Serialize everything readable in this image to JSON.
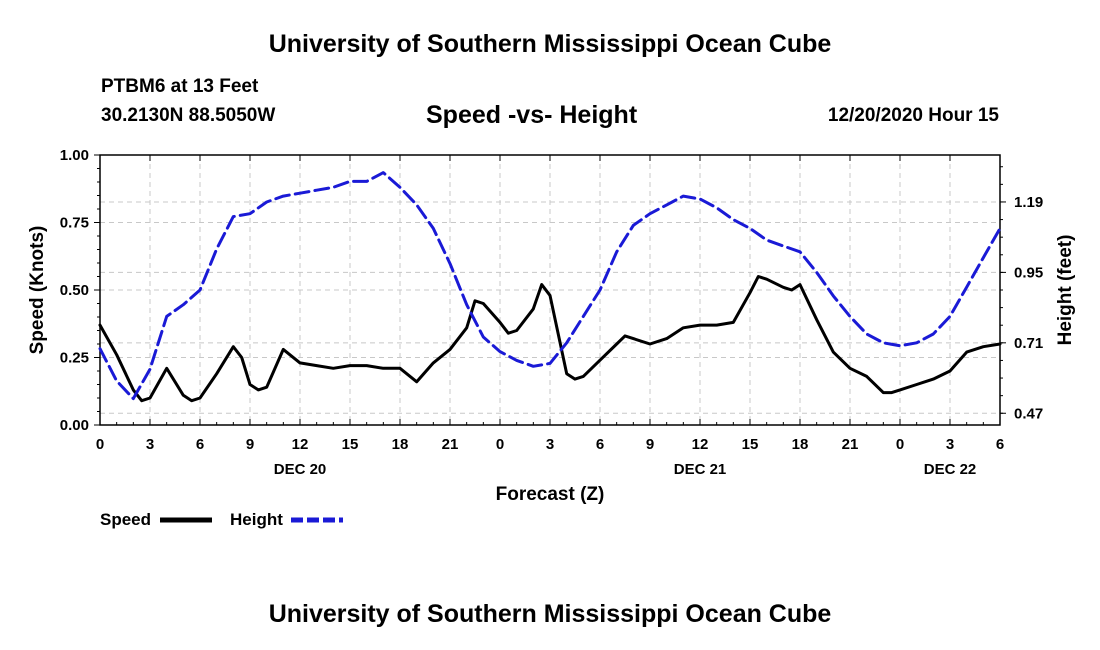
{
  "header": {
    "top_title": "University of Southern Mississippi Ocean Cube",
    "station": "PTBM6 at 13 Feet",
    "coords": "30.2130N 88.5050W",
    "chart_title": "Speed -vs- Height",
    "timestamp": "12/20/2020 Hour 15",
    "bottom_title": "University of Southern Mississippi Ocean Cube"
  },
  "colors": {
    "speed": "#000000",
    "height": "#1a1ad6",
    "grid": "#c8c8c8"
  },
  "chart_data": {
    "type": "line",
    "title": "Speed -vs- Height",
    "xlabel": "Forecast (Z)",
    "ylabel_left": "Speed (Knots)",
    "ylabel_right": "Height (feet)",
    "x_range": [
      0,
      54
    ],
    "ylim_left": [
      0,
      1.0
    ],
    "ylim_right": [
      0.43,
      1.35
    ],
    "x_ticks": [
      {
        "x": 0,
        "label": "0"
      },
      {
        "x": 3,
        "label": "3"
      },
      {
        "x": 6,
        "label": "6"
      },
      {
        "x": 9,
        "label": "9"
      },
      {
        "x": 12,
        "label": "12"
      },
      {
        "x": 15,
        "label": "15"
      },
      {
        "x": 18,
        "label": "18"
      },
      {
        "x": 21,
        "label": "21"
      },
      {
        "x": 24,
        "label": "0"
      },
      {
        "x": 27,
        "label": "3"
      },
      {
        "x": 30,
        "label": "6"
      },
      {
        "x": 33,
        "label": "9"
      },
      {
        "x": 36,
        "label": "12"
      },
      {
        "x": 39,
        "label": "15"
      },
      {
        "x": 42,
        "label": "18"
      },
      {
        "x": 45,
        "label": "21"
      },
      {
        "x": 48,
        "label": "0"
      },
      {
        "x": 51,
        "label": "3"
      },
      {
        "x": 54,
        "label": "6"
      }
    ],
    "date_labels": [
      {
        "x": 12,
        "label": "DEC 20"
      },
      {
        "x": 36,
        "label": "DEC 21"
      },
      {
        "x": 51,
        "label": "DEC 22"
      }
    ],
    "y_ticks_left": [
      {
        "v": 0.0,
        "label": "0.00"
      },
      {
        "v": 0.25,
        "label": "0.25"
      },
      {
        "v": 0.5,
        "label": "0.50"
      },
      {
        "v": 0.75,
        "label": "0.75"
      },
      {
        "v": 1.0,
        "label": "1.00"
      }
    ],
    "y_ticks_right": [
      {
        "v": 0.47,
        "label": "0.47"
      },
      {
        "v": 0.71,
        "label": "0.71"
      },
      {
        "v": 0.95,
        "label": "0.95"
      },
      {
        "v": 1.19,
        "label": "1.19"
      }
    ],
    "grid": true,
    "legend": {
      "position": "bottom-left",
      "speed_label": "Speed",
      "height_label": "Height"
    },
    "series": [
      {
        "name": "Speed",
        "axis": "left",
        "style": "solid",
        "x": [
          0,
          1,
          2,
          2.5,
          3,
          4,
          5,
          5.5,
          6,
          7,
          8,
          8.5,
          9,
          9.5,
          10,
          11,
          12,
          13,
          14,
          15,
          16,
          17,
          18,
          19,
          20,
          21,
          22,
          22.5,
          23,
          24,
          24.5,
          25,
          26,
          26.5,
          27,
          28,
          28.5,
          29,
          30,
          31,
          31.5,
          32,
          33,
          34,
          35,
          36,
          37,
          38,
          39,
          39.5,
          40,
          41,
          41.5,
          42,
          43,
          44,
          45,
          46,
          47,
          47.5,
          48,
          49,
          50,
          51,
          52,
          53,
          54
        ],
        "values": [
          0.37,
          0.26,
          0.13,
          0.09,
          0.1,
          0.21,
          0.11,
          0.09,
          0.1,
          0.19,
          0.29,
          0.25,
          0.15,
          0.13,
          0.14,
          0.28,
          0.23,
          0.22,
          0.21,
          0.22,
          0.22,
          0.21,
          0.21,
          0.16,
          0.23,
          0.28,
          0.36,
          0.46,
          0.45,
          0.38,
          0.34,
          0.35,
          0.43,
          0.52,
          0.48,
          0.19,
          0.17,
          0.18,
          0.24,
          0.3,
          0.33,
          0.32,
          0.3,
          0.32,
          0.36,
          0.37,
          0.37,
          0.38,
          0.49,
          0.55,
          0.54,
          0.51,
          0.5,
          0.52,
          0.39,
          0.27,
          0.21,
          0.18,
          0.12,
          0.12,
          0.13,
          0.15,
          0.17,
          0.2,
          0.27,
          0.29,
          0.3
        ]
      },
      {
        "name": "Height",
        "axis": "right",
        "style": "dashed",
        "x": [
          0,
          1,
          2,
          3,
          4,
          5,
          6,
          7,
          8,
          9,
          10,
          11,
          12,
          13,
          14,
          15,
          16,
          17,
          18,
          19,
          20,
          21,
          22,
          23,
          24,
          25,
          26,
          27,
          28,
          29,
          30,
          31,
          32,
          33,
          34,
          35,
          36,
          37,
          38,
          39,
          40,
          41,
          42,
          43,
          44,
          45,
          46,
          47,
          48,
          49,
          50,
          51,
          52,
          53,
          54
        ],
        "values": [
          0.69,
          0.58,
          0.52,
          0.62,
          0.8,
          0.84,
          0.89,
          1.03,
          1.14,
          1.15,
          1.19,
          1.21,
          1.22,
          1.23,
          1.24,
          1.26,
          1.26,
          1.29,
          1.24,
          1.18,
          1.1,
          0.98,
          0.84,
          0.73,
          0.68,
          0.65,
          0.63,
          0.64,
          0.71,
          0.8,
          0.89,
          1.02,
          1.11,
          1.15,
          1.18,
          1.21,
          1.2,
          1.17,
          1.13,
          1.1,
          1.06,
          1.04,
          1.02,
          0.95,
          0.87,
          0.8,
          0.74,
          0.71,
          0.7,
          0.71,
          0.74,
          0.8,
          0.9,
          1.0,
          1.1
        ]
      }
    ]
  }
}
